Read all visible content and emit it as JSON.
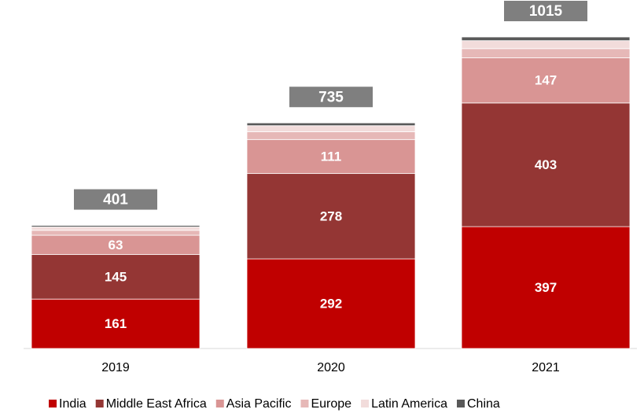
{
  "chart_data": {
    "type": "stacked_bar",
    "categories": [
      "2019",
      "2020",
      "2021"
    ],
    "series": [
      {
        "name": "India",
        "color": "#c00000",
        "values": [
          161,
          292,
          397
        ]
      },
      {
        "name": "Middle East Africa",
        "color": "#943634",
        "values": [
          145,
          278,
          403
        ]
      },
      {
        "name": "Asia Pacific",
        "color": "#d99594",
        "values": [
          63,
          111,
          147
        ]
      },
      {
        "name": "Europe",
        "color": "#e6b8b7",
        "values": [
          16,
          25,
          30
        ]
      },
      {
        "name": "Latin America",
        "color": "#f2dcdb",
        "values": [
          11,
          20,
          26
        ]
      },
      {
        "name": "China",
        "color": "#595959",
        "values": [
          5,
          9,
          12
        ]
      }
    ],
    "totals": [
      401,
      735,
      1015
    ],
    "total_color": "#7f7f7f",
    "legend": "bottom"
  }
}
